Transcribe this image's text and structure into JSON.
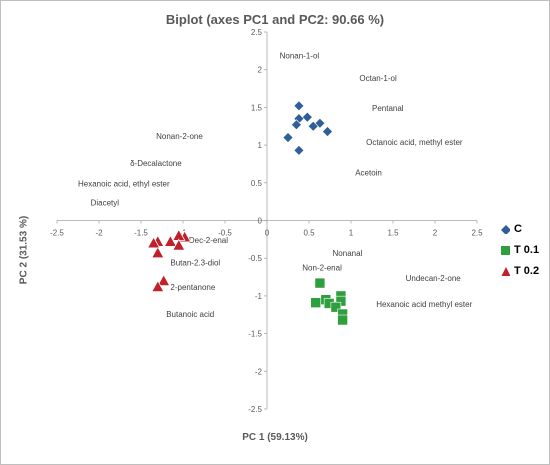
{
  "chart_data": {
    "type": "scatter",
    "title": "Biplot (axes PC1 and PC2: 90.66 %)",
    "xlabel": "PC 1 (59.13%)",
    "ylabel": "PC 2 (31.53 %)",
    "xlim": [
      -2.5,
      2.5
    ],
    "ylim": [
      -2.5,
      2.5
    ],
    "xticks": [
      "-2.5",
      "-2",
      "-1.5",
      "-1",
      "-0.5",
      "0",
      "0.5",
      "1",
      "1.5",
      "2",
      "2.5"
    ],
    "yticks": [
      "2.5",
      "2",
      "1.5",
      "1",
      "0.5",
      "0",
      "-0.5",
      "-1",
      "-1.5",
      "-2",
      "-2.5"
    ],
    "grid": false,
    "legend_position": "right",
    "series": [
      {
        "name": "C",
        "marker": "diamond",
        "color": "#2e5f96",
        "points": [
          [
            0.38,
            1.52
          ],
          [
            0.48,
            1.37
          ],
          [
            0.38,
            1.35
          ],
          [
            0.35,
            1.27
          ],
          [
            0.63,
            1.29
          ],
          [
            0.55,
            1.25
          ],
          [
            0.72,
            1.18
          ],
          [
            0.25,
            1.1
          ],
          [
            0.38,
            0.93
          ]
        ]
      },
      {
        "name": "T 0.1",
        "marker": "square",
        "color": "#2e9e3e",
        "points": [
          [
            0.63,
            -0.83
          ],
          [
            0.88,
            -1.0
          ],
          [
            0.7,
            -1.05
          ],
          [
            0.88,
            -1.07
          ],
          [
            0.58,
            -1.09
          ],
          [
            0.74,
            -1.1
          ],
          [
            0.82,
            -1.15
          ],
          [
            0.9,
            -1.24
          ],
          [
            0.9,
            -1.32
          ]
        ]
      },
      {
        "name": "T 0.2",
        "marker": "triangle",
        "color": "#c0202a",
        "points": [
          [
            -1.3,
            -0.28
          ],
          [
            -0.98,
            -0.22
          ],
          [
            -1.05,
            -0.2
          ],
          [
            -1.15,
            -0.28
          ],
          [
            -1.05,
            -0.33
          ],
          [
            -1.3,
            -0.43
          ],
          [
            -1.35,
            -0.3
          ],
          [
            -1.23,
            -0.8
          ],
          [
            -1.3,
            -0.88
          ]
        ]
      }
    ],
    "annotations": [
      {
        "text": "Nonan-1-ol",
        "x": 0.15,
        "y": 2.15
      },
      {
        "text": "Octan-1-ol",
        "x": 1.1,
        "y": 1.85
      },
      {
        "text": "Pentanal",
        "x": 1.25,
        "y": 1.45
      },
      {
        "text": "Octanoic acid, methyl ester",
        "x": 1.18,
        "y": 1.0
      },
      {
        "text": "Acetoin",
        "x": 1.05,
        "y": 0.6
      },
      {
        "text": "Nonan-2-one",
        "x": -1.32,
        "y": 1.08
      },
      {
        "text": "δ-Decalactone",
        "x": -1.63,
        "y": 0.72
      },
      {
        "text": "Hexanoic acid, ethyl ester",
        "x": -2.25,
        "y": 0.45
      },
      {
        "text": "Diacetyl",
        "x": -2.1,
        "y": 0.2
      },
      {
        "text": "Dec-2-enal",
        "x": -0.93,
        "y": -0.3
      },
      {
        "text": "Butan-2.3-diol",
        "x": -1.15,
        "y": -0.6
      },
      {
        "text": "2-pentanone",
        "x": -1.15,
        "y": -0.92
      },
      {
        "text": "Butanoic acid",
        "x": -1.2,
        "y": -1.28
      },
      {
        "text": "Nonanal",
        "x": 0.78,
        "y": -0.47
      },
      {
        "text": "Non-2-enal",
        "x": 0.42,
        "y": -0.66
      },
      {
        "text": "Undecan-2-one",
        "x": 1.65,
        "y": -0.8
      },
      {
        "text": "Hexanoic acid methyl ester",
        "x": 1.3,
        "y": -1.15
      }
    ]
  }
}
